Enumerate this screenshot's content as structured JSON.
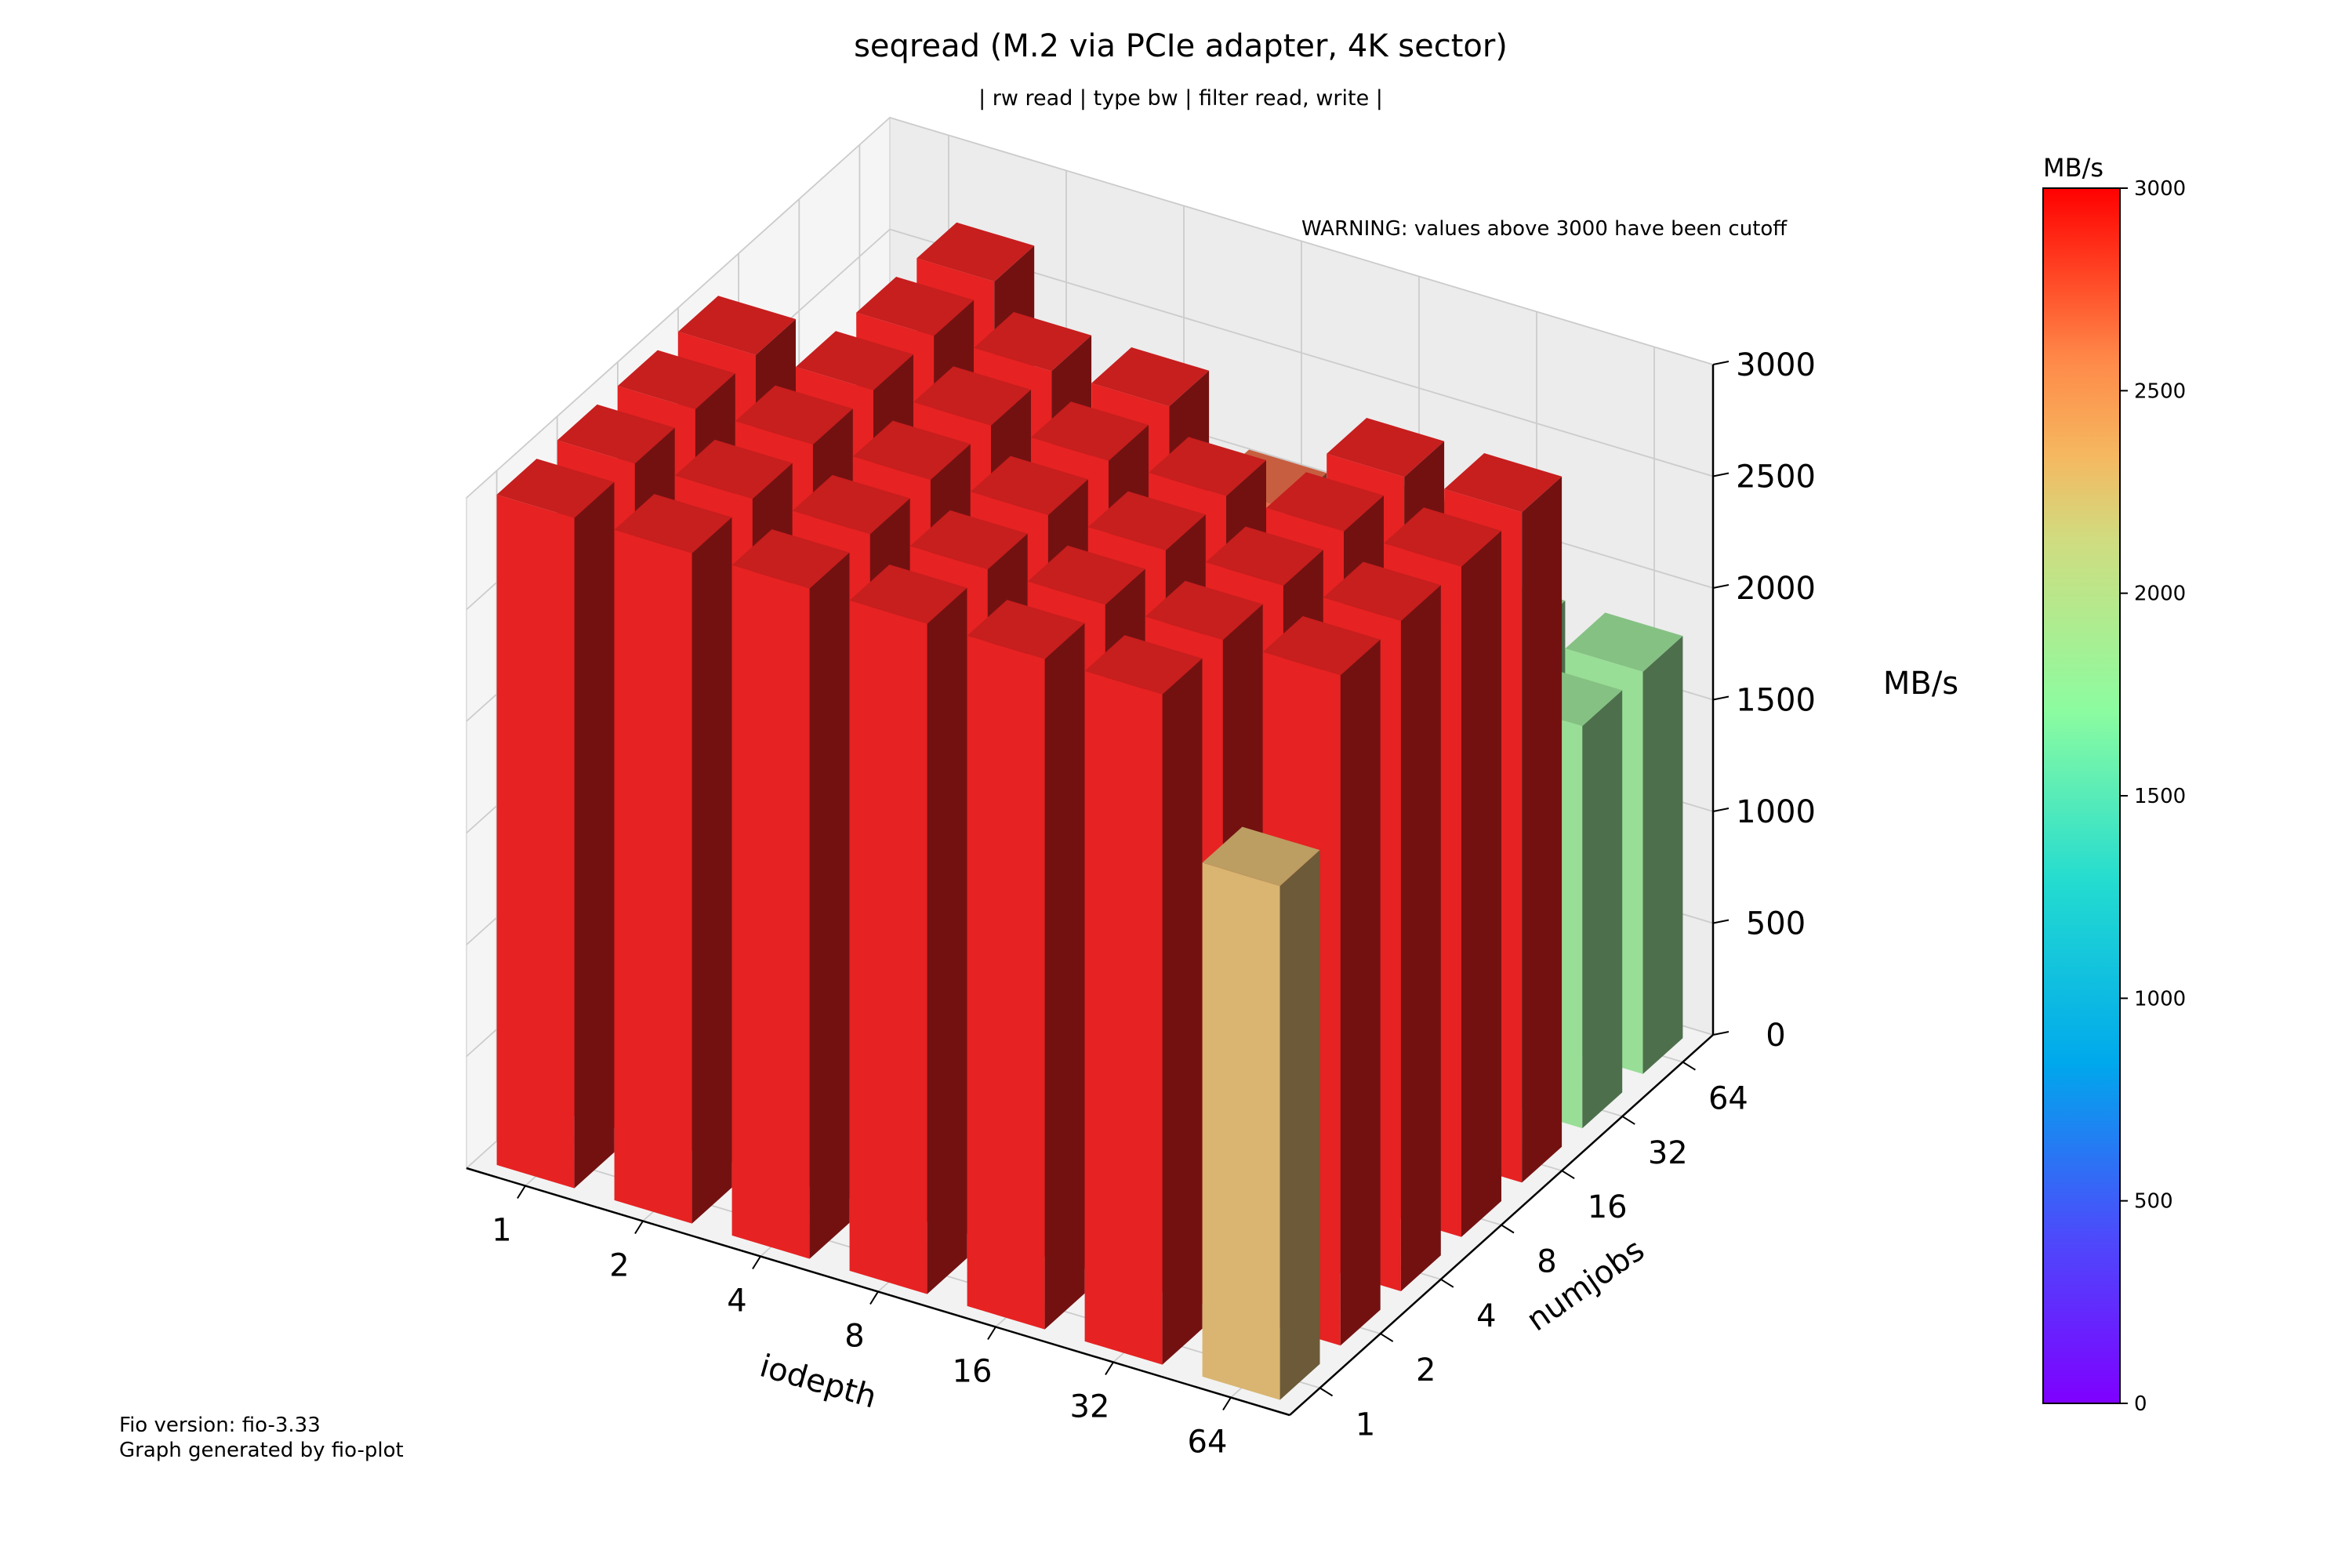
{
  "chart_data": {
    "type": "bar3d",
    "title": "seqread (M.2 via PCIe adapter, 4K sector)",
    "subtitle": "| rw read | type bw | filter read, write |",
    "warning": "WARNING: values above 3000 have been cutoff",
    "xlabel": "iodepth",
    "ylabel": "numjobs",
    "zlabel": "MB/s",
    "x_categories": [
      "1",
      "2",
      "4",
      "8",
      "16",
      "32",
      "64"
    ],
    "y_categories": [
      "1",
      "2",
      "4",
      "8",
      "16",
      "32",
      "64"
    ],
    "zlim": [
      0,
      3000
    ],
    "z_ticks": [
      "0",
      "500",
      "1000",
      "1500",
      "2000",
      "2500",
      "3000"
    ],
    "values": [
      [
        3000,
        3000,
        3000,
        3000,
        1800,
        1800,
        1800
      ],
      [
        3000,
        3000,
        3000,
        3000,
        3000,
        3000,
        1800
      ],
      [
        3000,
        3000,
        3000,
        3000,
        3000,
        1800,
        1800
      ],
      [
        3000,
        3000,
        3000,
        3000,
        3000,
        1800,
        1800
      ],
      [
        3000,
        3000,
        3000,
        3000,
        2700,
        1800,
        2100
      ],
      [
        3000,
        3000,
        3000,
        3000,
        3000,
        1800,
        1800
      ],
      [
        2300,
        3000,
        3000,
        3000,
        3000,
        1800,
        1800
      ]
    ],
    "colorbar": {
      "label": "MB/s",
      "min": 0,
      "max": 3000,
      "ticks": [
        "0",
        "500",
        "1000",
        "1500",
        "2000",
        "2500",
        "3000"
      ]
    },
    "grid": true
  },
  "footer": {
    "line1": "Fio version: fio-3.33",
    "line2": "Graph generated by fio-plot"
  }
}
